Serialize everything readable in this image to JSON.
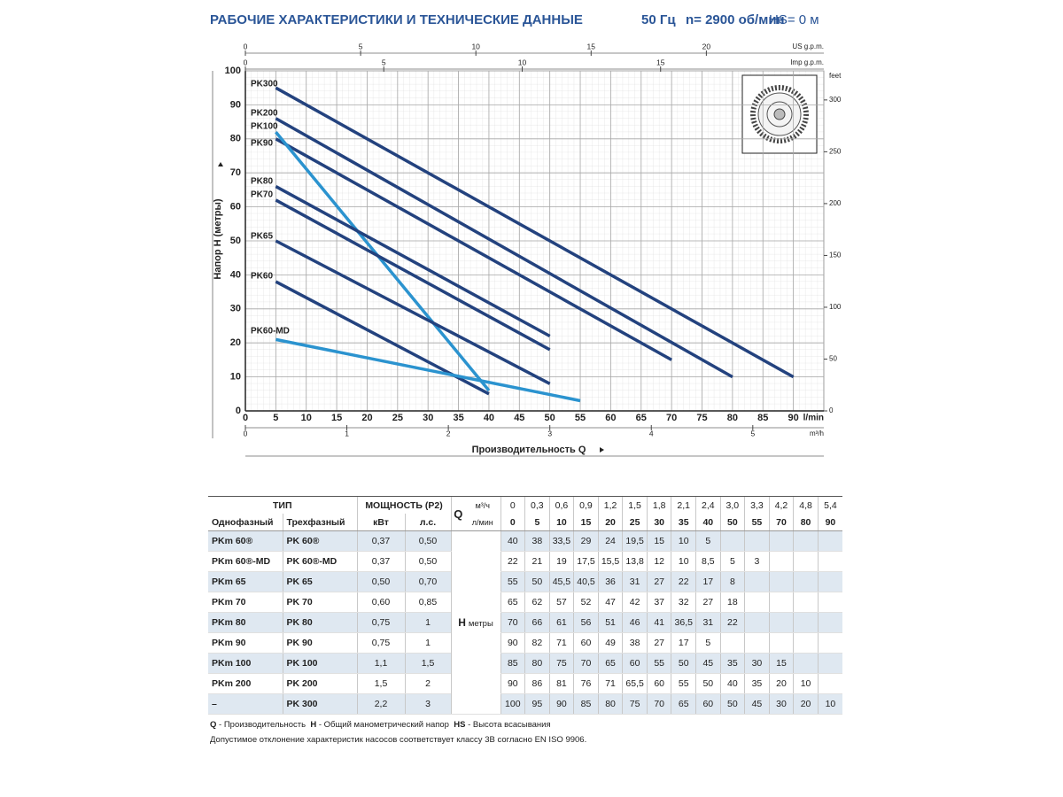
{
  "header": {
    "title": "РАБОЧИЕ ХАРАКТЕРИСТИКИ И ТЕХНИЧЕСКИЕ ДАННЫЕ",
    "freq": "50 Гц",
    "speed": "n= 2900 об/мин",
    "suction": "HS= 0 м"
  },
  "chart_data": {
    "type": "line",
    "xlabel": "Производительность Q",
    "ylabel": "Напор H (метры)",
    "x_unit": "l/min",
    "xlim": [
      0,
      95
    ],
    "xticks": [
      0,
      5,
      10,
      15,
      20,
      25,
      30,
      35,
      40,
      45,
      50,
      55,
      60,
      65,
      70,
      75,
      80,
      85,
      90
    ],
    "ylim": [
      0,
      100
    ],
    "yticks": [
      0,
      10,
      20,
      30,
      40,
      50,
      60,
      70,
      80,
      90,
      100
    ],
    "y2_unit": "feet",
    "y2lim": [
      0,
      328.08
    ],
    "y2ticks": [
      0,
      50,
      100,
      150,
      200,
      250,
      300
    ],
    "top_axes": [
      {
        "unit": "US g.p.m.",
        "lim": [
          0,
          25.097
        ],
        "ticks": [
          0,
          5,
          10,
          15,
          20
        ]
      },
      {
        "unit": "Imp g.p.m.",
        "lim": [
          0,
          20.897
        ],
        "ticks": [
          0,
          5,
          10,
          15
        ]
      }
    ],
    "bottom_axis2": {
      "unit": "m³/h",
      "lim": [
        0,
        5.7
      ],
      "ticks": [
        0,
        1,
        2,
        3,
        4,
        5
      ]
    },
    "grid": true,
    "series": [
      {
        "name": "PK300",
        "color": "#23427e",
        "x": [
          5,
          90
        ],
        "values": [
          95,
          10
        ]
      },
      {
        "name": "PK200",
        "color": "#23427e",
        "x": [
          5,
          80
        ],
        "values": [
          86,
          10
        ]
      },
      {
        "name": "PK100",
        "color": "#23427e",
        "x": [
          5,
          70
        ],
        "values": [
          80,
          15
        ]
      },
      {
        "name": "PK90",
        "color": "#2b93cf",
        "x": [
          5,
          40
        ],
        "values": [
          82,
          6
        ]
      },
      {
        "name": "PK80",
        "color": "#23427e",
        "x": [
          5,
          50
        ],
        "values": [
          66,
          22
        ]
      },
      {
        "name": "PK70",
        "color": "#23427e",
        "x": [
          5,
          50
        ],
        "values": [
          62,
          18
        ]
      },
      {
        "name": "PK65",
        "color": "#23427e",
        "x": [
          5,
          50
        ],
        "values": [
          50,
          8
        ]
      },
      {
        "name": "PK60",
        "color": "#23427e",
        "x": [
          5,
          40
        ],
        "values": [
          38,
          5
        ]
      },
      {
        "name": "PK60-MD",
        "color": "#2b93cf",
        "x": [
          5,
          55
        ],
        "values": [
          21,
          3
        ]
      }
    ]
  },
  "table": {
    "type_header": "ТИП",
    "power_header": "МОЩНОСТЬ (P2)",
    "q_label": "Q",
    "unit_m3h": "м³/ч",
    "unit_lmin": "л/мин",
    "col_single": "Однофазный",
    "col_three": "Трехфазный",
    "unit_kw": "кВт",
    "unit_hp": "л.с.",
    "h_label": "H",
    "h_unit": "метры",
    "flow_m3h": [
      "0",
      "0,3",
      "0,6",
      "0,9",
      "1,2",
      "1,5",
      "1,8",
      "2,1",
      "2,4",
      "3,0",
      "3,3",
      "4,2",
      "4,8",
      "5,4"
    ],
    "flow_lmin": [
      0,
      5,
      10,
      15,
      20,
      25,
      30,
      35,
      40,
      50,
      55,
      70,
      80,
      90
    ],
    "rows": [
      {
        "single": "PKm 60®",
        "three": "PK 60®",
        "kw": "0,37",
        "hp": "0,50",
        "head": [
          "40",
          "38",
          "33,5",
          "29",
          "24",
          "19,5",
          "15",
          "10",
          "5"
        ]
      },
      {
        "single": "PKm 60®-MD",
        "three": "PK 60®-MD",
        "kw": "0,37",
        "hp": "0,50",
        "head": [
          "22",
          "21",
          "19",
          "17,5",
          "15,5",
          "13,8",
          "12",
          "10",
          "8,5",
          "5",
          "3"
        ]
      },
      {
        "single": "PKm 65",
        "three": "PK 65",
        "kw": "0,50",
        "hp": "0,70",
        "head": [
          "55",
          "50",
          "45,5",
          "40,5",
          "36",
          "31",
          "27",
          "22",
          "17",
          "8"
        ]
      },
      {
        "single": "PKm 70",
        "three": "PK 70",
        "kw": "0,60",
        "hp": "0,85",
        "head": [
          "65",
          "62",
          "57",
          "52",
          "47",
          "42",
          "37",
          "32",
          "27",
          "18"
        ]
      },
      {
        "single": "PKm 80",
        "three": "PK 80",
        "kw": "0,75",
        "hp": "1",
        "head": [
          "70",
          "66",
          "61",
          "56",
          "51",
          "46",
          "41",
          "36,5",
          "31",
          "22"
        ]
      },
      {
        "single": "PKm 90",
        "three": "PK 90",
        "kw": "0,75",
        "hp": "1",
        "head": [
          "90",
          "82",
          "71",
          "60",
          "49",
          "38",
          "27",
          "17",
          "5"
        ]
      },
      {
        "single": "PKm 100",
        "three": "PK 100",
        "kw": "1,1",
        "hp": "1,5",
        "head": [
          "85",
          "80",
          "75",
          "70",
          "65",
          "60",
          "55",
          "50",
          "45",
          "35",
          "30",
          "15"
        ]
      },
      {
        "single": "PKm 200",
        "three": "PK 200",
        "kw": "1,5",
        "hp": "2",
        "head": [
          "90",
          "86",
          "81",
          "76",
          "71",
          "65,5",
          "60",
          "55",
          "50",
          "40",
          "35",
          "20",
          "10"
        ]
      },
      {
        "single": "–",
        "three": "PK 300",
        "kw": "2,2",
        "hp": "3",
        "head": [
          "100",
          "95",
          "90",
          "85",
          "80",
          "75",
          "70",
          "65",
          "60",
          "50",
          "45",
          "30",
          "20",
          "10"
        ]
      }
    ]
  },
  "notes": {
    "q_key": "Q",
    "q_text": " - Производительность",
    "h_key": "H",
    "h_text": " - Общий манометрический напор",
    "hs_key": "HS",
    "hs_text": " - Высота всасывания",
    "tolerance": "Допустимое отклонение характеристик насосов соответствует классу 3В согласно EN ISO 9906."
  }
}
